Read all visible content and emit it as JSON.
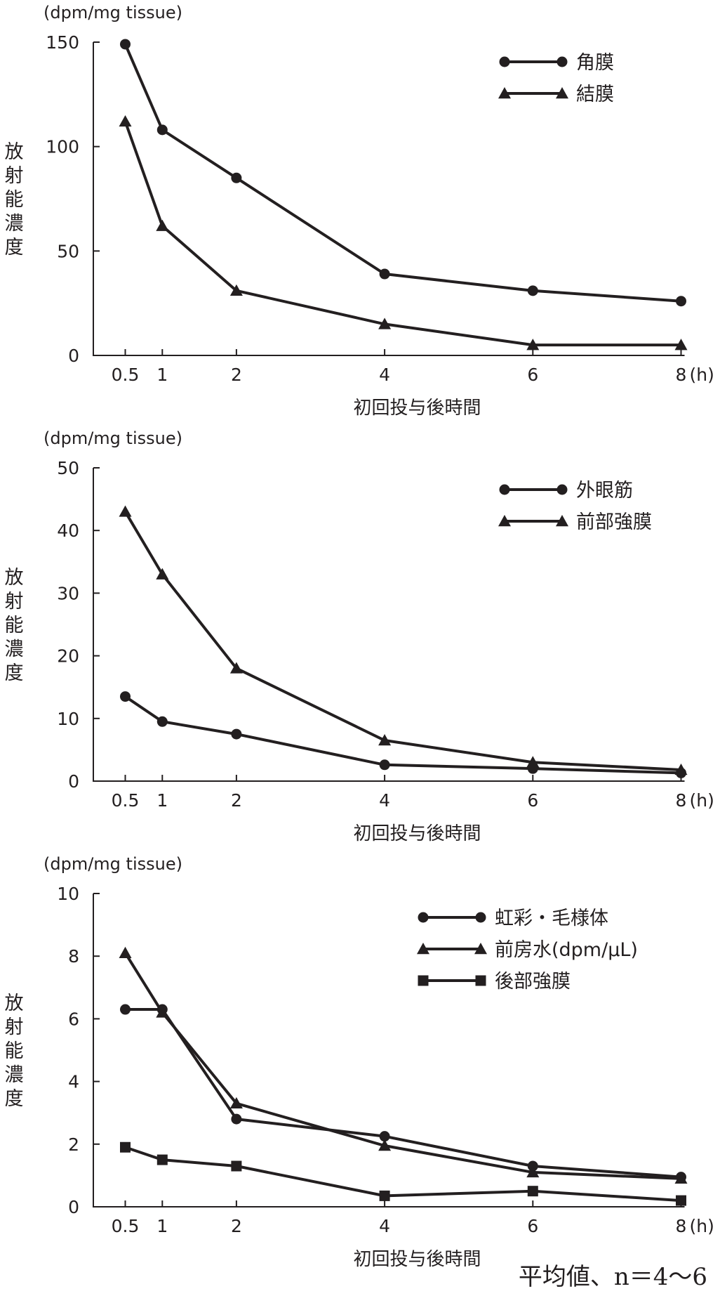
{
  "footnote": "平均値、n＝4〜6",
  "chart_data": [
    {
      "type": "line",
      "unit_label": "(dpm/mg tissue)",
      "ylabel": "放射能濃度",
      "xlabel": "初回投与後時間",
      "x_unit": "(h)",
      "x": [
        0.5,
        1,
        2,
        4,
        6,
        8
      ],
      "x_ticks": [
        "0.5",
        "1",
        "2",
        "4",
        "6",
        "8"
      ],
      "ylim": [
        0,
        150
      ],
      "y_ticks": [
        0,
        50,
        100,
        150
      ],
      "legend_position": "top-right",
      "series": [
        {
          "name": "角膜",
          "marker": "circle",
          "values": [
            149,
            108,
            85,
            39,
            31,
            26
          ]
        },
        {
          "name": "結膜",
          "marker": "triangle",
          "values": [
            112,
            62,
            31,
            15,
            5,
            5
          ]
        }
      ]
    },
    {
      "type": "line",
      "unit_label": "(dpm/mg tissue)",
      "ylabel": "放射能濃度",
      "xlabel": "初回投与後時間",
      "x_unit": "(h)",
      "x": [
        0.5,
        1,
        2,
        4,
        6,
        8
      ],
      "x_ticks": [
        "0.5",
        "1",
        "2",
        "4",
        "6",
        "8"
      ],
      "ylim": [
        0,
        50
      ],
      "y_ticks": [
        0,
        10,
        20,
        30,
        40,
        50
      ],
      "legend_position": "top-right",
      "series": [
        {
          "name": "外眼筋",
          "marker": "circle",
          "values": [
            13.5,
            9.5,
            7.5,
            2.6,
            2.0,
            1.3
          ]
        },
        {
          "name": "前部強膜",
          "marker": "triangle",
          "values": [
            43,
            33,
            18,
            6.5,
            3.0,
            1.8
          ]
        }
      ]
    },
    {
      "type": "line",
      "unit_label": "(dpm/mg tissue)",
      "ylabel": "放射能濃度",
      "xlabel": "初回投与後時間",
      "x_unit": "(h)",
      "x": [
        0.5,
        1,
        2,
        4,
        6,
        8
      ],
      "x_ticks": [
        "0.5",
        "1",
        "2",
        "4",
        "6",
        "8"
      ],
      "ylim": [
        0,
        10
      ],
      "y_ticks": [
        0,
        2,
        4,
        6,
        8,
        10
      ],
      "legend_position": "top-right",
      "series": [
        {
          "name": "虹彩・毛様体",
          "marker": "circle",
          "values": [
            6.3,
            6.3,
            2.8,
            2.25,
            1.3,
            0.95
          ]
        },
        {
          "name": "前房水(dpm/μL)",
          "marker": "triangle",
          "values": [
            8.1,
            6.2,
            3.3,
            1.95,
            1.1,
            0.9
          ]
        },
        {
          "name": "後部強膜",
          "marker": "square",
          "values": [
            1.9,
            1.5,
            1.3,
            0.35,
            0.5,
            0.2
          ]
        }
      ]
    }
  ]
}
